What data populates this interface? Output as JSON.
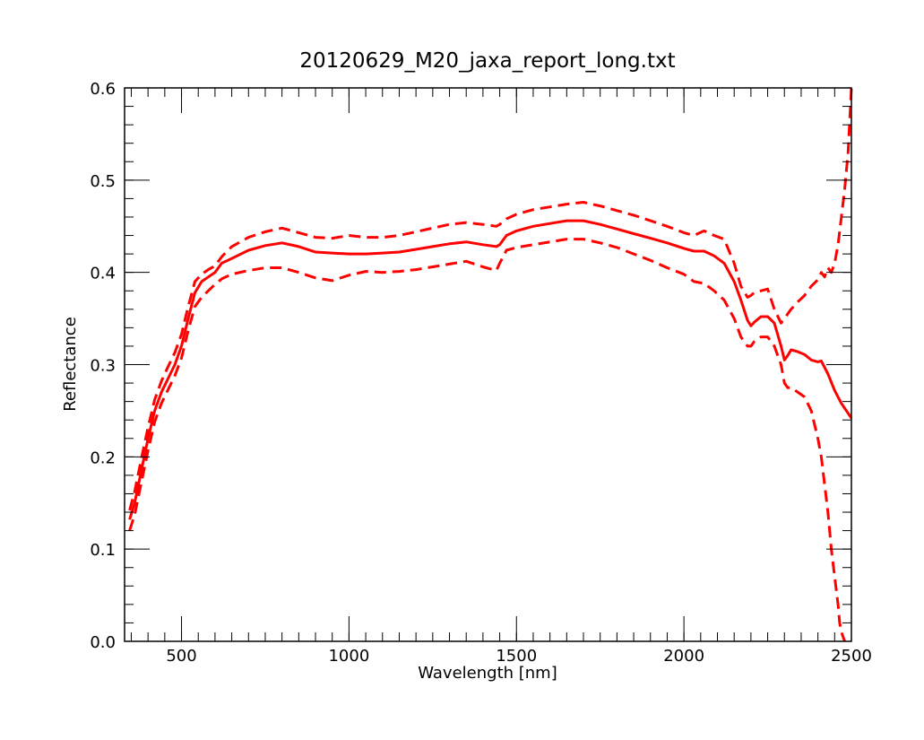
{
  "chart_data": {
    "type": "line",
    "title": "20120629_M20_jaxa_report_long.txt",
    "xlabel": "Wavelength [nm]",
    "ylabel": "Reflectance",
    "xlim": [
      330,
      2500
    ],
    "ylim": [
      0.0,
      0.6
    ],
    "x_ticks": [
      500,
      1000,
      1500,
      2000,
      2500
    ],
    "x_tick_labels": [
      "500",
      "1000",
      "1500",
      "2000",
      "2500"
    ],
    "x_minor_step": 50,
    "y_ticks": [
      0.0,
      0.1,
      0.2,
      0.3,
      0.4,
      0.5,
      0.6
    ],
    "y_tick_labels": [
      "0.0",
      "0.1",
      "0.2",
      "0.3",
      "0.4",
      "0.5",
      "0.6"
    ],
    "y_minor_step": 0.02,
    "grid": false,
    "legend": "none",
    "line_color": "#ff0000",
    "series": [
      {
        "style": "solid",
        "x": [
          345,
          360,
          380,
          400,
          420,
          440,
          460,
          480,
          500,
          520,
          540,
          560,
          580,
          600,
          620,
          650,
          700,
          750,
          800,
          850,
          900,
          950,
          1000,
          1050,
          1100,
          1150,
          1200,
          1250,
          1300,
          1350,
          1400,
          1440,
          1450,
          1470,
          1500,
          1550,
          1600,
          1650,
          1700,
          1750,
          1800,
          1850,
          1900,
          1950,
          2000,
          2030,
          2060,
          2090,
          2120,
          2150,
          2170,
          2190,
          2200,
          2210,
          2230,
          2250,
          2270,
          2290,
          2300,
          2310,
          2320,
          2340,
          2360,
          2380,
          2400,
          2410,
          2430,
          2450,
          2470,
          2500
        ],
        "y": [
          0.132,
          0.15,
          0.185,
          0.22,
          0.25,
          0.27,
          0.285,
          0.3,
          0.32,
          0.35,
          0.378,
          0.39,
          0.395,
          0.4,
          0.41,
          0.415,
          0.424,
          0.429,
          0.432,
          0.428,
          0.422,
          0.421,
          0.42,
          0.42,
          0.421,
          0.422,
          0.425,
          0.428,
          0.431,
          0.433,
          0.43,
          0.428,
          0.43,
          0.44,
          0.445,
          0.45,
          0.453,
          0.456,
          0.456,
          0.452,
          0.447,
          0.442,
          0.437,
          0.432,
          0.426,
          0.423,
          0.423,
          0.418,
          0.41,
          0.39,
          0.37,
          0.348,
          0.342,
          0.346,
          0.352,
          0.352,
          0.345,
          0.32,
          0.305,
          0.31,
          0.316,
          0.314,
          0.311,
          0.305,
          0.303,
          0.304,
          0.29,
          0.272,
          0.258,
          0.242
        ]
      },
      {
        "style": "dashed",
        "x": [
          345,
          360,
          380,
          400,
          420,
          440,
          460,
          480,
          500,
          520,
          540,
          560,
          580,
          600,
          620,
          650,
          700,
          750,
          800,
          850,
          900,
          950,
          1000,
          1050,
          1100,
          1150,
          1200,
          1250,
          1300,
          1350,
          1400,
          1440,
          1450,
          1470,
          1500,
          1550,
          1600,
          1650,
          1700,
          1750,
          1800,
          1850,
          1900,
          1950,
          2000,
          2030,
          2060,
          2090,
          2120,
          2150,
          2170,
          2190,
          2200,
          2210,
          2230,
          2250,
          2270,
          2290,
          2300,
          2310,
          2320,
          2340,
          2360,
          2380,
          2400,
          2410,
          2420,
          2430,
          2440,
          2450,
          2460,
          2470,
          2480,
          2490,
          2500
        ],
        "y": [
          0.142,
          0.162,
          0.198,
          0.232,
          0.262,
          0.282,
          0.298,
          0.313,
          0.333,
          0.363,
          0.39,
          0.398,
          0.403,
          0.407,
          0.417,
          0.428,
          0.438,
          0.444,
          0.448,
          0.443,
          0.438,
          0.437,
          0.44,
          0.438,
          0.438,
          0.44,
          0.444,
          0.448,
          0.452,
          0.454,
          0.452,
          0.45,
          0.452,
          0.458,
          0.463,
          0.468,
          0.471,
          0.474,
          0.476,
          0.472,
          0.467,
          0.462,
          0.456,
          0.45,
          0.443,
          0.44,
          0.445,
          0.44,
          0.436,
          0.41,
          0.385,
          0.373,
          0.375,
          0.378,
          0.38,
          0.382,
          0.36,
          0.345,
          0.35,
          0.355,
          0.36,
          0.368,
          0.375,
          0.385,
          0.392,
          0.4,
          0.395,
          0.405,
          0.4,
          0.41,
          0.43,
          0.46,
          0.49,
          0.53,
          0.6
        ]
      },
      {
        "style": "dashed",
        "x": [
          345,
          360,
          380,
          400,
          420,
          440,
          460,
          480,
          500,
          520,
          540,
          560,
          580,
          600,
          620,
          650,
          700,
          750,
          800,
          850,
          900,
          950,
          1000,
          1050,
          1100,
          1150,
          1200,
          1250,
          1300,
          1350,
          1400,
          1440,
          1450,
          1470,
          1500,
          1550,
          1600,
          1650,
          1700,
          1750,
          1800,
          1850,
          1900,
          1950,
          2000,
          2030,
          2060,
          2090,
          2120,
          2150,
          2170,
          2190,
          2200,
          2210,
          2230,
          2250,
          2270,
          2290,
          2300,
          2310,
          2320,
          2340,
          2360,
          2380,
          2400,
          2410,
          2420,
          2430,
          2440,
          2450,
          2460,
          2465,
          2470,
          2475,
          2480
        ],
        "y": [
          0.12,
          0.137,
          0.172,
          0.207,
          0.238,
          0.258,
          0.273,
          0.288,
          0.307,
          0.337,
          0.363,
          0.373,
          0.38,
          0.387,
          0.393,
          0.398,
          0.402,
          0.405,
          0.405,
          0.4,
          0.394,
          0.391,
          0.397,
          0.401,
          0.4,
          0.401,
          0.403,
          0.406,
          0.409,
          0.412,
          0.406,
          0.402,
          0.41,
          0.424,
          0.427,
          0.43,
          0.433,
          0.436,
          0.436,
          0.432,
          0.427,
          0.42,
          0.413,
          0.405,
          0.398,
          0.39,
          0.388,
          0.38,
          0.37,
          0.35,
          0.33,
          0.32,
          0.32,
          0.325,
          0.33,
          0.33,
          0.32,
          0.3,
          0.28,
          0.275,
          0.275,
          0.27,
          0.265,
          0.25,
          0.22,
          0.2,
          0.17,
          0.14,
          0.1,
          0.07,
          0.04,
          0.02,
          0.01,
          0.005,
          0.0
        ]
      }
    ]
  }
}
